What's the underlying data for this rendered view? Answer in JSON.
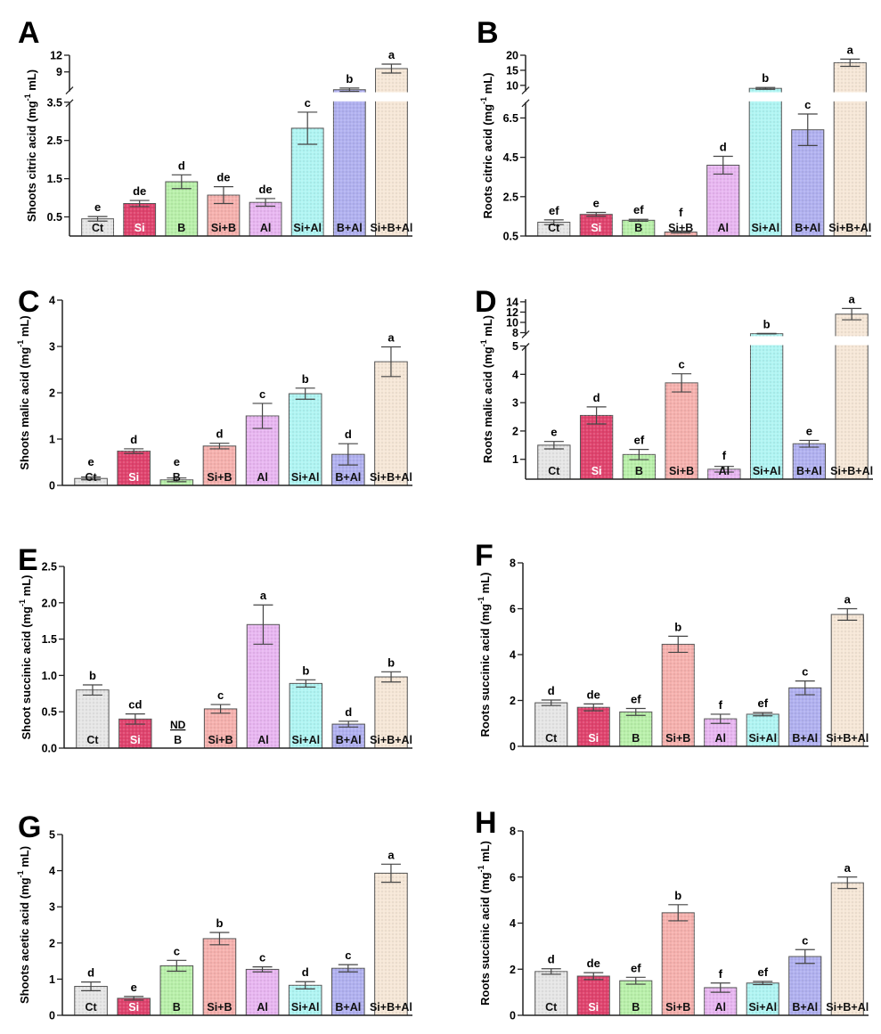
{
  "colors": {
    "Ct": "#e6e6e6",
    "Si": "#e0446e",
    "B": "#b9f0aa",
    "Si+B": "#f6b1ae",
    "Al": "#e8b6f1",
    "Si+Al": "#b0f5f3",
    "B+Al": "#b1b1f0",
    "Si+B+Al": "#f6e7d7"
  },
  "chart_data": [
    {
      "panel": "A",
      "type": "bar",
      "ylabel": {
        "main": "Shoots citric acid (mg",
        "sup": "-1",
        "end": " mL)"
      },
      "categories": [
        "Ct",
        "Si",
        "B",
        "Si+B",
        "Al",
        "Si+Al",
        "B+Al",
        "Si+B+Al"
      ],
      "values": [
        0.45,
        0.85,
        1.42,
        1.07,
        0.88,
        2.82,
        5.8,
        9.6
      ],
      "errors": [
        0.06,
        0.08,
        0.18,
        0.22,
        0.1,
        0.42,
        0.3,
        0.8
      ],
      "letters": [
        "e",
        "de",
        "d",
        "de",
        "de",
        "c",
        "b",
        "a"
      ],
      "axis_break": {
        "lower": [
          0,
          3.5
        ],
        "upper": [
          5.5,
          12
        ]
      },
      "ticks_lower": [
        "0.5",
        "1.5",
        "2.5",
        "3.5"
      ],
      "ticks_upper": [
        "9",
        "12"
      ]
    },
    {
      "panel": "B",
      "type": "bar",
      "ylabel": {
        "main": "Roots citric acid (mg",
        "sup": "-1",
        "end": " mL)"
      },
      "categories": [
        "Ct",
        "Si",
        "B",
        "Si+B",
        "Al",
        "Si+Al",
        "B+Al",
        "Si+B+Al"
      ],
      "values": [
        1.2,
        1.6,
        1.3,
        0.7,
        4.1,
        9.0,
        5.9,
        17.5
      ],
      "errors": [
        0.12,
        0.1,
        0.05,
        0.05,
        0.45,
        0.3,
        0.8,
        1.2
      ],
      "letters": [
        "ef",
        "e",
        "ef",
        "f",
        "d",
        "b",
        "c",
        "a"
      ],
      "axis_break": {
        "lower": [
          0.5,
          7.3
        ],
        "upper": [
          8,
          20
        ]
      },
      "ticks_lower": [
        "0.5",
        "2.5",
        "4.5",
        "6.5"
      ],
      "ticks_upper": [
        "10",
        "15",
        "20"
      ]
    },
    {
      "panel": "C",
      "type": "bar",
      "ylabel": {
        "main": "Shoots malic acid (mg",
        "sup": "-1",
        "end": " mL)"
      },
      "categories": [
        "Ct",
        "Si",
        "B",
        "Si+B",
        "Al",
        "Si+Al",
        "B+Al",
        "Si+B+Al"
      ],
      "values": [
        0.15,
        0.74,
        0.12,
        0.85,
        1.5,
        1.98,
        0.67,
        2.67
      ],
      "errors": [
        0.03,
        0.05,
        0.04,
        0.06,
        0.27,
        0.12,
        0.23,
        0.32
      ],
      "letters": [
        "e",
        "d",
        "e",
        "d",
        "c",
        "b",
        "d",
        "a"
      ],
      "ylim": [
        0,
        4
      ],
      "ticks": [
        "0",
        "1",
        "2",
        "3",
        "4"
      ]
    },
    {
      "panel": "D",
      "type": "bar",
      "ylabel": {
        "main": "Roots malic acid (mg",
        "sup": "-1",
        "end": " mL)"
      },
      "categories": [
        "Ct",
        "Si",
        "B",
        "Si+B",
        "Al",
        "Si+Al",
        "B+Al",
        "Si+B+Al"
      ],
      "values": [
        1.5,
        2.55,
        1.17,
        3.7,
        0.65,
        7.8,
        1.55,
        11.6
      ],
      "errors": [
        0.13,
        0.3,
        0.18,
        0.32,
        0.1,
        0.05,
        0.12,
        1.1
      ],
      "letters": [
        "e",
        "d",
        "ef",
        "c",
        "f",
        "b",
        "e",
        "a"
      ],
      "axis_break": {
        "lower": [
          0.3,
          5
        ],
        "upper": [
          7.5,
          14.5
        ]
      },
      "ticks_lower": [
        "1",
        "2",
        "3",
        "4",
        "5"
      ],
      "ticks_upper": [
        "8",
        "10",
        "12",
        "14"
      ]
    },
    {
      "panel": "E",
      "type": "bar",
      "ylabel": {
        "main": "Shoot succinic acid (mg",
        "sup": "-1",
        "end": " mL)"
      },
      "categories": [
        "Ct",
        "Si",
        "B",
        "Si+B",
        "Al",
        "Si+Al",
        "B+Al",
        "Si+B+Al"
      ],
      "values": [
        0.8,
        0.4,
        0,
        0.54,
        1.7,
        0.89,
        0.33,
        0.98
      ],
      "errors": [
        0.07,
        0.07,
        0,
        0.06,
        0.27,
        0.05,
        0.04,
        0.07
      ],
      "letters": [
        "b",
        "cd",
        "ND",
        "c",
        "a",
        "b",
        "d",
        "b"
      ],
      "ylim": [
        0,
        2.5
      ],
      "ticks": [
        "0.0",
        "0.5",
        "1.0",
        "1.5",
        "2.0",
        "2.5"
      ]
    },
    {
      "panel": "F",
      "type": "bar",
      "ylabel": {
        "main": "Roots succinic acid (mg",
        "sup": "-1",
        "end": " mL)"
      },
      "categories": [
        "Ct",
        "Si",
        "B",
        "Si+B",
        "Al",
        "Si+Al",
        "B+Al",
        "Si+B+Al"
      ],
      "values": [
        1.9,
        1.7,
        1.5,
        4.45,
        1.2,
        1.4,
        2.55,
        5.75
      ],
      "errors": [
        0.12,
        0.15,
        0.15,
        0.35,
        0.2,
        0.07,
        0.3,
        0.25
      ],
      "letters": [
        "d",
        "de",
        "ef",
        "b",
        "f",
        "ef",
        "c",
        "a"
      ],
      "ylim": [
        0,
        8
      ],
      "ticks": [
        "0",
        "2",
        "4",
        "6",
        "8"
      ]
    },
    {
      "panel": "G",
      "type": "bar",
      "ylabel": {
        "main": "Shoots acetic acid (mg",
        "sup": "-1",
        "end": " mL)"
      },
      "categories": [
        "Ct",
        "Si",
        "B",
        "Si+B",
        "Al",
        "Si+Al",
        "B+Al",
        "Si+B+Al"
      ],
      "values": [
        0.8,
        0.47,
        1.37,
        2.12,
        1.27,
        0.83,
        1.3,
        3.93
      ],
      "errors": [
        0.12,
        0.05,
        0.15,
        0.17,
        0.07,
        0.1,
        0.1,
        0.25
      ],
      "letters": [
        "d",
        "e",
        "c",
        "b",
        "c",
        "d",
        "c",
        "a"
      ],
      "ylim": [
        0,
        5
      ],
      "ticks": [
        "0",
        "1",
        "2",
        "3",
        "4",
        "5"
      ]
    },
    {
      "panel": "H",
      "type": "bar",
      "ylabel": {
        "main": "Roots succinic acid (mg",
        "sup": "-1",
        "end": " mL)"
      },
      "categories": [
        "Ct",
        "Si",
        "B",
        "Si+B",
        "Al",
        "Si+Al",
        "B+Al",
        "Si+B+Al"
      ],
      "values": [
        1.9,
        1.7,
        1.5,
        4.45,
        1.2,
        1.4,
        2.55,
        5.75
      ],
      "errors": [
        0.12,
        0.15,
        0.15,
        0.35,
        0.2,
        0.07,
        0.3,
        0.25
      ],
      "letters": [
        "d",
        "de",
        "ef",
        "b",
        "f",
        "ef",
        "c",
        "a"
      ],
      "ylim": [
        0,
        8
      ],
      "ticks": [
        "0",
        "2",
        "4",
        "6",
        "8"
      ]
    }
  ]
}
